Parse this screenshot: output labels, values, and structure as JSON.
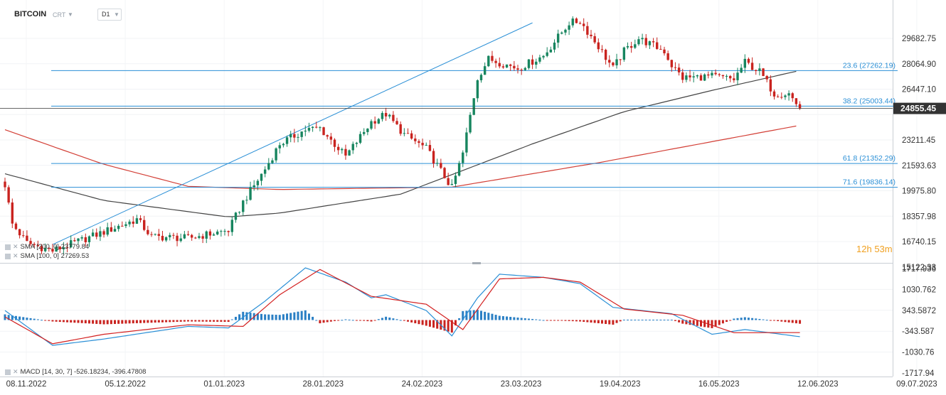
{
  "header": {
    "symbol": "BITCOIN",
    "chart_type": "CRT",
    "timeframe": "D1"
  },
  "countdown": {
    "hours": "12",
    "h_unit": "h",
    "minutes": "53",
    "m_unit": "m"
  },
  "colors": {
    "bull": "#17855f",
    "bear": "#c9231f",
    "fib": "#2a8fd6",
    "sma200": "#d33f36",
    "sma100": "#444444",
    "macd_line": "#2a8fd6",
    "signal_line": "#d32020",
    "hist_pos": "#2a7fc4",
    "hist_neg": "#c9231f",
    "price_tag_bg": "#333333"
  },
  "legends": {
    "sma200": {
      "icon": "eye-icon",
      "text": "SMA [200, 0] 23779.84"
    },
    "sma100": {
      "icon": "eye-icon",
      "text": "SMA [100, 0] 27269.53"
    },
    "macd": {
      "icon": "eye-icon",
      "text": "MACD [14, 30, 7] -526.18234, -396.47808"
    }
  },
  "chart_data": [
    {
      "type": "candlestick",
      "title": "",
      "x_ticks": [
        "08.11.2022",
        "05.12.2022",
        "01.01.2023",
        "28.01.2023",
        "24.02.2023",
        "23.03.2023",
        "19.04.2023",
        "16.05.2023",
        "12.06.2023",
        "09.07.2023"
      ],
      "y_ticks": [
        "29682.75",
        "28064.90",
        "26447.10",
        "24855.45",
        "23211.45",
        "21593.63",
        "19975.80",
        "18357.98",
        "16740.15",
        "15122.33"
      ],
      "ylim": [
        15122.33,
        31300
      ],
      "last_price": 24855.45,
      "fib_levels": [
        {
          "label": "23.6 (27262.19)",
          "value": 27262.19
        },
        {
          "label": "38.2 (25003.44)",
          "value": 25003.44
        },
        {
          "label": "61.8 (21352.29)",
          "value": 21352.29
        },
        {
          "label": "71.6 (19836.14)",
          "value": 19836.14
        }
      ],
      "trendline": {
        "from": {
          "x": "2022-11-21",
          "y": 16200
        },
        "to": {
          "x": "2023-04-01",
          "y": 30300
        }
      },
      "close_path": [
        {
          "x": "2022-11-08",
          "y": 20000
        },
        {
          "x": "2022-11-10",
          "y": 17500
        },
        {
          "x": "2022-11-14",
          "y": 16300
        },
        {
          "x": "2022-11-21",
          "y": 15800
        },
        {
          "x": "2022-11-28",
          "y": 16400
        },
        {
          "x": "2022-12-05",
          "y": 17000
        },
        {
          "x": "2022-12-14",
          "y": 17800
        },
        {
          "x": "2022-12-18",
          "y": 16700
        },
        {
          "x": "2022-12-28",
          "y": 16600
        },
        {
          "x": "2023-01-08",
          "y": 17100
        },
        {
          "x": "2023-01-12",
          "y": 18900
        },
        {
          "x": "2023-01-18",
          "y": 21000
        },
        {
          "x": "2023-01-22",
          "y": 22600
        },
        {
          "x": "2023-01-29",
          "y": 23500
        },
        {
          "x": "2023-02-02",
          "y": 23600
        },
        {
          "x": "2023-02-09",
          "y": 21800
        },
        {
          "x": "2023-02-16",
          "y": 24000
        },
        {
          "x": "2023-02-20",
          "y": 24500
        },
        {
          "x": "2023-02-25",
          "y": 23200
        },
        {
          "x": "2023-03-03",
          "y": 22300
        },
        {
          "x": "2023-03-10",
          "y": 19800
        },
        {
          "x": "2023-03-13",
          "y": 22000
        },
        {
          "x": "2023-03-17",
          "y": 26800
        },
        {
          "x": "2023-03-20",
          "y": 28000
        },
        {
          "x": "2023-03-28",
          "y": 27400
        },
        {
          "x": "2023-04-04",
          "y": 28200
        },
        {
          "x": "2023-04-11",
          "y": 30300
        },
        {
          "x": "2023-04-14",
          "y": 30400
        },
        {
          "x": "2023-04-19",
          "y": 28800
        },
        {
          "x": "2023-04-23",
          "y": 27400
        },
        {
          "x": "2023-04-26",
          "y": 28500
        },
        {
          "x": "2023-04-30",
          "y": 29300
        },
        {
          "x": "2023-05-07",
          "y": 28500
        },
        {
          "x": "2023-05-09",
          "y": 27600
        },
        {
          "x": "2023-05-12",
          "y": 26800
        },
        {
          "x": "2023-05-20",
          "y": 26900
        },
        {
          "x": "2023-05-26",
          "y": 26700
        },
        {
          "x": "2023-05-29",
          "y": 27800
        },
        {
          "x": "2023-06-02",
          "y": 27200
        },
        {
          "x": "2023-06-06",
          "y": 25800
        },
        {
          "x": "2023-06-10",
          "y": 25800
        },
        {
          "x": "2023-06-13",
          "y": 24855
        }
      ],
      "sma200": [
        {
          "x": "2022-11-08",
          "y": 23500
        },
        {
          "x": "2022-12-05",
          "y": 21300
        },
        {
          "x": "2022-12-28",
          "y": 19900
        },
        {
          "x": "2023-01-22",
          "y": 19700
        },
        {
          "x": "2023-03-10",
          "y": 19850
        },
        {
          "x": "2023-04-19",
          "y": 21400
        },
        {
          "x": "2023-06-13",
          "y": 23779.84
        }
      ],
      "sma100": [
        {
          "x": "2022-11-08",
          "y": 20700
        },
        {
          "x": "2022-12-05",
          "y": 19000
        },
        {
          "x": "2023-01-08",
          "y": 17950
        },
        {
          "x": "2023-01-22",
          "y": 18200
        },
        {
          "x": "2023-02-24",
          "y": 19400
        },
        {
          "x": "2023-04-01",
          "y": 22600
        },
        {
          "x": "2023-04-26",
          "y": 24650
        },
        {
          "x": "2023-05-20",
          "y": 26000
        },
        {
          "x": "2023-06-13",
          "y": 27269.53
        }
      ]
    },
    {
      "type": "bar",
      "title": "",
      "indicator": "MACD",
      "params": [
        14,
        30,
        7
      ],
      "values": {
        "macd": -526.18234,
        "signal": -396.47808
      },
      "y_ticks": [
        "1717.936",
        "1030.762",
        "343.5872",
        "-343.587",
        "-1030.76",
        "-1717.94"
      ],
      "ylim": [
        -1717.94,
        1717.936
      ],
      "macd_line": [
        {
          "x": "2022-11-08",
          "y": 300
        },
        {
          "x": "2022-11-21",
          "y": -800
        },
        {
          "x": "2022-12-05",
          "y": -600
        },
        {
          "x": "2022-12-28",
          "y": -200
        },
        {
          "x": "2023-01-08",
          "y": -250
        },
        {
          "x": "2023-01-18",
          "y": 600
        },
        {
          "x": "2023-01-29",
          "y": 1650
        },
        {
          "x": "2023-02-09",
          "y": 1200
        },
        {
          "x": "2023-02-16",
          "y": 700
        },
        {
          "x": "2023-02-20",
          "y": 800
        },
        {
          "x": "2023-03-03",
          "y": 300
        },
        {
          "x": "2023-03-10",
          "y": -500
        },
        {
          "x": "2023-03-17",
          "y": 700
        },
        {
          "x": "2023-03-23",
          "y": 1450
        },
        {
          "x": "2023-04-04",
          "y": 1350
        },
        {
          "x": "2023-04-14",
          "y": 1150
        },
        {
          "x": "2023-04-23",
          "y": 400
        },
        {
          "x": "2023-05-09",
          "y": 200
        },
        {
          "x": "2023-05-20",
          "y": -450
        },
        {
          "x": "2023-05-29",
          "y": -300
        },
        {
          "x": "2023-06-13",
          "y": -526.18234
        }
      ],
      "signal_line": [
        {
          "x": "2022-11-08",
          "y": 100
        },
        {
          "x": "2022-11-21",
          "y": -750
        },
        {
          "x": "2022-12-05",
          "y": -450
        },
        {
          "x": "2022-12-28",
          "y": -150
        },
        {
          "x": "2023-01-12",
          "y": -200
        },
        {
          "x": "2023-01-22",
          "y": 800
        },
        {
          "x": "2023-02-02",
          "y": 1600
        },
        {
          "x": "2023-02-16",
          "y": 750
        },
        {
          "x": "2023-03-03",
          "y": 500
        },
        {
          "x": "2023-03-13",
          "y": -300
        },
        {
          "x": "2023-03-23",
          "y": 1300
        },
        {
          "x": "2023-04-04",
          "y": 1350
        },
        {
          "x": "2023-04-14",
          "y": 1200
        },
        {
          "x": "2023-04-26",
          "y": 350
        },
        {
          "x": "2023-05-12",
          "y": 150
        },
        {
          "x": "2023-05-26",
          "y": -400
        },
        {
          "x": "2023-06-13",
          "y": -396.47808
        }
      ]
    }
  ]
}
